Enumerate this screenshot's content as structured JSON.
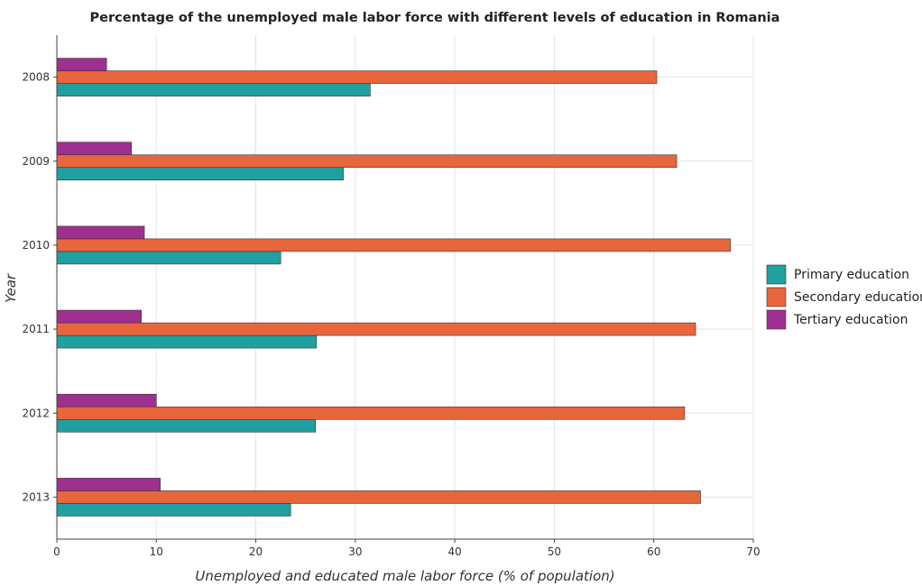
{
  "chart_data": {
    "type": "bar",
    "orientation": "horizontal",
    "title": "Percentage of the unemployed male labor force with different levels of education in Romania",
    "xlabel": "Unemployed and educated male labor force (% of population)",
    "ylabel": "Year",
    "categories": [
      "2008",
      "2009",
      "2010",
      "2011",
      "2012",
      "2013"
    ],
    "xlim": [
      0,
      70
    ],
    "xticks": [
      "0",
      "10",
      "20",
      "30",
      "40",
      "50",
      "60",
      "70"
    ],
    "grid": true,
    "legend_position": "right",
    "series": [
      {
        "name": "Primary education",
        "color": "#20a0a0",
        "values": [
          31.5,
          28.8,
          22.5,
          26.1,
          26.0,
          23.5
        ]
      },
      {
        "name": "Secondary education",
        "color": "#e8663b",
        "values": [
          60.3,
          62.3,
          67.7,
          64.2,
          63.1,
          64.7
        ]
      },
      {
        "name": "Tertiary education",
        "color": "#a03090",
        "values": [
          5.0,
          7.5,
          8.8,
          8.5,
          10.0,
          10.4
        ]
      }
    ]
  }
}
